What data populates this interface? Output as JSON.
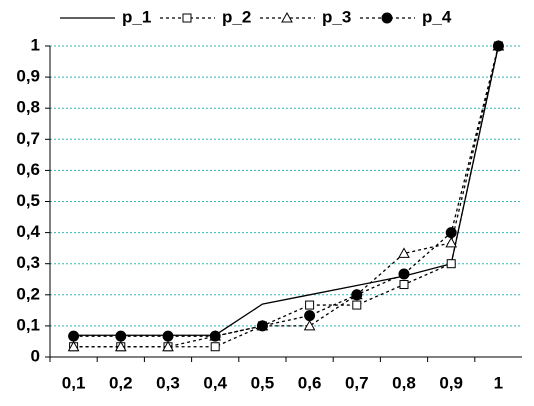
{
  "chart_data": {
    "type": "line",
    "categories": [
      "0,1",
      "0,2",
      "0,3",
      "0,4",
      "0,5",
      "0,6",
      "0,7",
      "0,8",
      "0,9",
      "1"
    ],
    "series": [
      {
        "name": "p_1",
        "color": "#000000",
        "dash": "solid",
        "marker": "none",
        "values": [
          0.07,
          0.07,
          0.07,
          0.07,
          0.17,
          0.2,
          0.23,
          0.26,
          0.3,
          1
        ]
      },
      {
        "name": "p_2",
        "color": "#000000",
        "dash": "dotted",
        "marker": "square",
        "values": [
          0.033,
          0.033,
          0.033,
          0.033,
          0.1,
          0.167,
          0.167,
          0.233,
          0.3,
          1
        ]
      },
      {
        "name": "p_3",
        "color": "#000000",
        "dash": "dotted",
        "marker": "triangle",
        "values": [
          0.033,
          0.033,
          0.033,
          0.067,
          0.1,
          0.1,
          0.2,
          0.333,
          0.367,
          1
        ]
      },
      {
        "name": "p_4",
        "color": "#000000",
        "dash": "dotted",
        "marker": "circle",
        "values": [
          0.067,
          0.067,
          0.067,
          0.067,
          0.1,
          0.133,
          0.2,
          0.267,
          0.4,
          1
        ]
      }
    ],
    "ylim": [
      0,
      1
    ],
    "yticks": [
      0,
      {
        "value": 0.1,
        "label": "0,1"
      },
      {
        "value": 0.2,
        "label": "0,2"
      },
      {
        "value": 0.3,
        "label": "0,3"
      },
      {
        "value": 0.4,
        "label": "0,4"
      },
      {
        "value": 0.5,
        "label": "0,5"
      },
      {
        "value": 0.6,
        "label": "0,6"
      },
      {
        "value": 0.7,
        "label": "0,7"
      },
      {
        "value": 0.8,
        "label": "0,8"
      },
      {
        "value": 0.9,
        "label": "0,9"
      },
      1
    ],
    "grid": true,
    "grid_color": "#33b5b5",
    "legend": "top"
  }
}
